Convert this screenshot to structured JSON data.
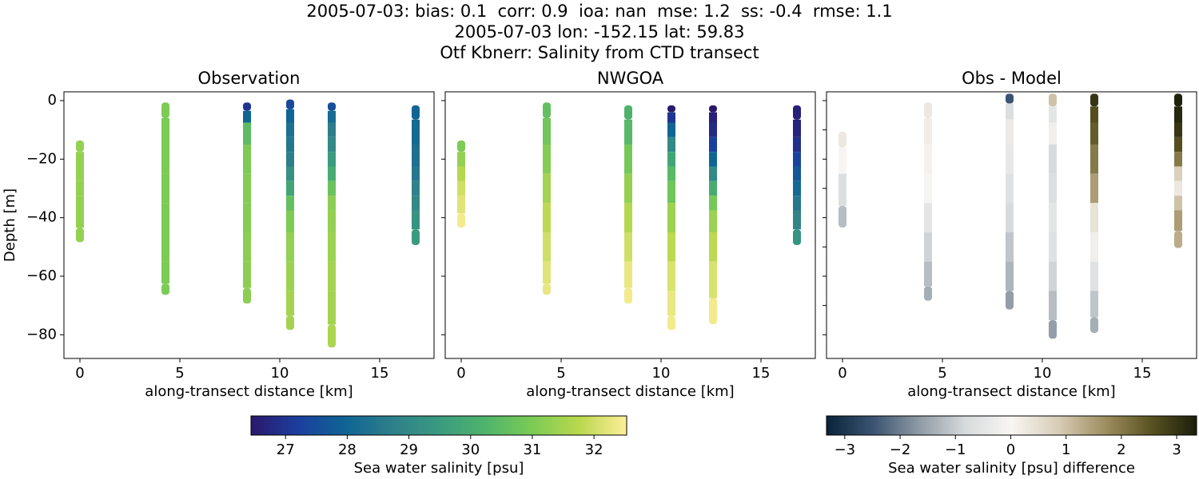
{
  "title_lines": [
    "2005-07-03: bias: 0.1  corr: 0.9  ioa: nan  mse: 1.2  ss: -0.4  rmse: 1.1",
    "2005-07-03 lon: -152.15 lat: 59.83",
    "Otf Kbnerr: Salinity from CTD transect"
  ],
  "chart_data": [
    {
      "type": "scatter",
      "title": "Observation",
      "xlabel": "along-transect distance [km]",
      "ylabel": "Depth [m]",
      "colorbar": 0,
      "xlim": [
        -0.8,
        17.72
      ],
      "ylim": [
        -88.1,
        3.0
      ],
      "xticks": [
        0,
        5,
        10,
        15
      ],
      "yticks": [
        0,
        {
          "value": -20,
          "label": "−20"
        },
        {
          "value": -40,
          "label": "−40"
        },
        {
          "value": -60,
          "label": "−60"
        },
        {
          "value": -80,
          "label": "−80"
        }
      ],
      "profiles": [
        {
          "x": 0,
          "depth": [
            -15,
            -20,
            -25,
            -30,
            -35,
            -40,
            -47
          ],
          "values": [
            31.3,
            31.3,
            31.3,
            31.3,
            31.3,
            31.3,
            31.3
          ]
        },
        {
          "x": 4.28,
          "depth": [
            -2,
            -10,
            -20,
            -30,
            -40,
            -50,
            -60,
            -65
          ],
          "values": [
            31.0,
            31.0,
            31.0,
            31.0,
            31.0,
            31.0,
            31.0,
            31.0
          ]
        },
        {
          "x": 8.36,
          "depth": [
            -2,
            -5,
            -10,
            -20,
            -30,
            -40,
            -50,
            -60,
            -68
          ],
          "values": [
            27.0,
            28.0,
            30.5,
            31.0,
            31.1,
            31.1,
            31.2,
            31.2,
            31.2
          ]
        },
        {
          "x": 10.52,
          "depth": [
            -1,
            -5,
            -10,
            -15,
            -20,
            -25,
            -30,
            -35,
            -40,
            -50,
            -60,
            -70,
            -77
          ],
          "values": [
            27.4,
            28.0,
            28.3,
            28.5,
            28.7,
            29.2,
            29.8,
            30.6,
            31.0,
            31.3,
            31.4,
            31.5,
            31.5
          ]
        },
        {
          "x": 12.6,
          "depth": [
            -2,
            -5,
            -10,
            -15,
            -20,
            -25,
            -30,
            -35,
            -40,
            -50,
            -60,
            -70,
            -83
          ],
          "values": [
            27.5,
            28.2,
            28.7,
            29.0,
            29.5,
            30.0,
            30.7,
            31.2,
            31.3,
            31.4,
            31.5,
            31.5,
            31.6
          ]
        },
        {
          "x": 16.8,
          "depth": [
            -3,
            -10,
            -20,
            -25,
            -30,
            -35,
            -40,
            -48
          ],
          "values": [
            28.0,
            28.1,
            28.3,
            28.5,
            28.8,
            29.0,
            29.3,
            29.5
          ]
        }
      ]
    },
    {
      "type": "scatter",
      "title": "NWGOA",
      "xlabel": "along-transect distance [km]",
      "colorbar": 0,
      "xlim": [
        -0.8,
        17.72
      ],
      "ylim": [
        -88.1,
        3.0
      ],
      "xticks": [
        0,
        5,
        10,
        15
      ],
      "yticks": [
        0,
        -20,
        -40,
        -60,
        -80
      ],
      "profiles": [
        {
          "x": 0,
          "depth": [
            -15,
            -20,
            -25,
            -30,
            -35,
            -42
          ],
          "values": [
            31.0,
            31.3,
            31.7,
            32.0,
            32.2,
            32.4
          ]
        },
        {
          "x": 4.28,
          "depth": [
            -2,
            -10,
            -20,
            -30,
            -40,
            -50,
            -60,
            -65
          ],
          "values": [
            30.6,
            30.8,
            31.1,
            31.5,
            31.8,
            32.0,
            32.2,
            32.3
          ]
        },
        {
          "x": 8.36,
          "depth": [
            -3,
            -10,
            -20,
            -30,
            -40,
            -50,
            -60,
            -68
          ],
          "values": [
            30.2,
            30.4,
            30.9,
            31.3,
            31.7,
            32.0,
            32.3,
            32.4
          ]
        },
        {
          "x": 10.52,
          "depth": [
            -3,
            -5,
            -10,
            -15,
            -20,
            -25,
            -30,
            -40,
            -50,
            -60,
            -70,
            -77
          ],
          "values": [
            26.5,
            27.0,
            28.0,
            29.0,
            29.8,
            30.4,
            30.8,
            31.4,
            31.8,
            32.1,
            32.3,
            32.4
          ]
        },
        {
          "x": 12.6,
          "depth": [
            -3,
            -5,
            -10,
            -15,
            -20,
            -25,
            -30,
            -35,
            -40,
            -50,
            -60,
            -75
          ],
          "values": [
            26.4,
            26.6,
            26.8,
            27.2,
            28.0,
            29.0,
            30.0,
            30.9,
            31.4,
            31.8,
            32.1,
            32.4
          ]
        },
        {
          "x": 16.8,
          "depth": [
            -3,
            -10,
            -15,
            -20,
            -25,
            -30,
            -35,
            -40,
            -48
          ],
          "values": [
            26.6,
            26.7,
            26.9,
            27.3,
            27.7,
            28.1,
            28.5,
            28.9,
            29.3
          ]
        }
      ]
    },
    {
      "type": "scatter",
      "title": "Obs - Model",
      "xlabel": "along-transect distance [km]",
      "colorbar": 1,
      "xlim": [
        -0.8,
        17.72
      ],
      "ylim": [
        -88.1,
        3.0
      ],
      "xticks": [
        0,
        5,
        10,
        15
      ],
      "yticks": [
        0,
        -10,
        -20,
        -30,
        -40,
        -50,
        -60,
        -70,
        -80
      ],
      "profiles": [
        {
          "x": 0,
          "depth": [
            -12,
            -20,
            -30,
            -42
          ],
          "values": [
            0.3,
            0,
            -0.7,
            -1.2
          ]
        },
        {
          "x": 4.28,
          "depth": [
            -2,
            -10,
            -20,
            -30,
            -40,
            -50,
            -60,
            -67
          ],
          "values": [
            0.3,
            0.2,
            0.1,
            0,
            -0.5,
            -0.9,
            -1.2,
            -1.4
          ]
        },
        {
          "x": 8.36,
          "depth": [
            1,
            -3,
            -10,
            -20,
            -30,
            -40,
            -50,
            -60,
            -70
          ],
          "values": [
            -2.5,
            -0.7,
            -0.3,
            -0.4,
            -0.6,
            -0.8,
            -1.1,
            -1.3,
            -1.6
          ]
        },
        {
          "x": 10.52,
          "depth": [
            1,
            -5,
            -10,
            -20,
            -30,
            -40,
            -50,
            -60,
            -70,
            -80
          ],
          "values": [
            1.0,
            -0.5,
            -0.2,
            -0.8,
            -0.7,
            -0.5,
            -0.6,
            -0.9,
            -1.2,
            -1.6
          ]
        },
        {
          "x": 12.6,
          "depth": [
            1,
            -5,
            -10,
            -20,
            -30,
            -40,
            -50,
            -60,
            -70,
            -78
          ],
          "values": [
            3.0,
            2.6,
            2.4,
            2.0,
            1.5,
            0.4,
            -0.2,
            -0.6,
            -1.1,
            -1.4
          ]
        },
        {
          "x": 16.8,
          "depth": [
            1,
            -5,
            -10,
            -15,
            -20,
            -25,
            -30,
            -35,
            -40,
            -49
          ],
          "values": [
            3.3,
            3.2,
            3.0,
            2.6,
            2.0,
            0.8,
            0.3,
            1.0,
            1.5,
            1.3
          ]
        }
      ]
    }
  ],
  "colorbars": [
    {
      "label": "Sea water salinity [psu]",
      "clim": [
        26.44,
        32.53
      ],
      "ticks": [
        27,
        28,
        29,
        30,
        31,
        32
      ],
      "colormap": [
        "#2a186c",
        "#1b3f9e",
        "#0f6494",
        "#2e7f8a",
        "#3a9a80",
        "#4fb46b",
        "#7ccb55",
        "#bad84e",
        "#fdee99"
      ]
    },
    {
      "label": "Sea water salinity [psu] difference",
      "clim": [
        -3.33,
        3.36
      ],
      "ticks": [
        {
          "value": -3,
          "label": "−3"
        },
        {
          "value": -2,
          "label": "−2"
        },
        {
          "value": -1,
          "label": "−1"
        },
        0,
        1,
        2,
        3
      ],
      "colormap": [
        "#08233a",
        "#3a5370",
        "#8e9aa4",
        "#d7dadc",
        "#f8f6f3",
        "#d8cdb7",
        "#a08f62",
        "#5b5322",
        "#1a1e0b"
      ]
    }
  ]
}
